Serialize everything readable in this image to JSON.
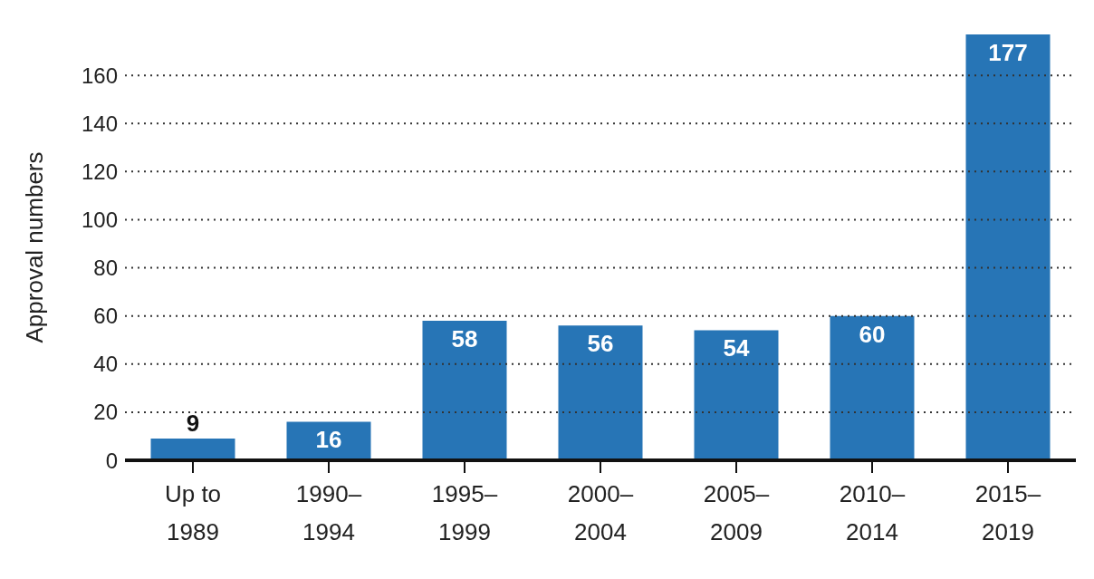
{
  "chart_data": {
    "type": "bar",
    "ylabel": "Approval numbers",
    "categories": [
      "Up to 1989",
      "1990–1994",
      "1995–1999",
      "2000–2004",
      "2005–2009",
      "2010–2014",
      "2015–2019"
    ],
    "values": [
      9,
      16,
      58,
      56,
      54,
      60,
      177
    ],
    "color": "#2775b6",
    "ylim": [
      0,
      177
    ],
    "yticks": [
      0,
      20,
      40,
      60,
      80,
      100,
      120,
      140,
      160
    ],
    "grid": "y",
    "data_labels": true
  }
}
